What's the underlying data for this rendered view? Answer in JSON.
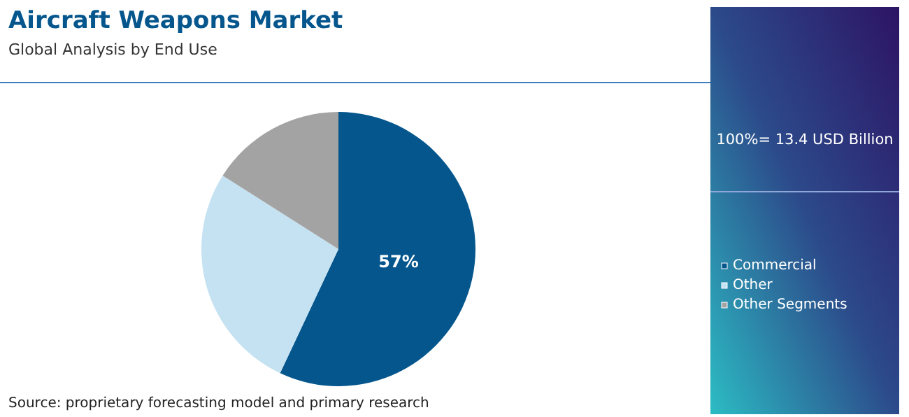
{
  "chart_data": {
    "type": "pie",
    "title": "Aircraft Weapons Market",
    "subtitle": "Global Analysis by End Use",
    "categories": [
      "Commercial",
      "Other",
      "Other Segments"
    ],
    "values": [
      57,
      27,
      16
    ],
    "colors": [
      "#04568c",
      "#c5e2f2",
      "#a3a3a3"
    ],
    "value_labels": [
      "57%",
      null,
      null
    ],
    "legend": "right",
    "annotations": [
      "100%= 13.4 USD Billion",
      "Source: proprietary forecasting model and primary research"
    ]
  }
}
